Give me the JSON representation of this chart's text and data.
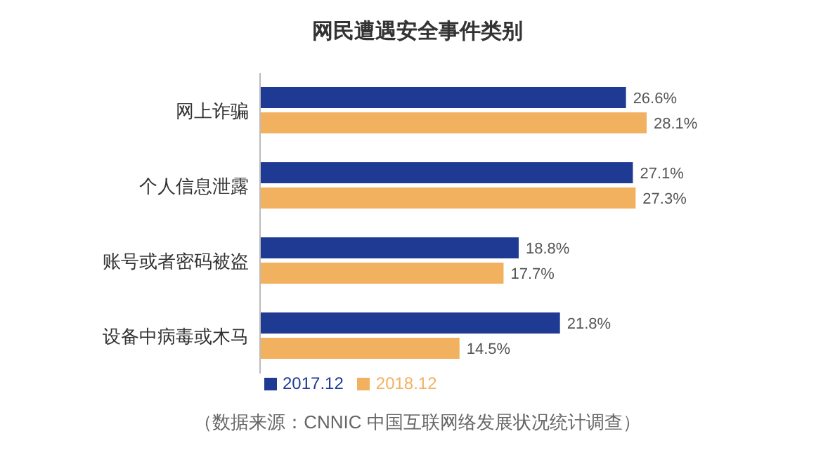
{
  "chart_data": {
    "type": "bar",
    "orientation": "horizontal",
    "title": "网民遭遇安全事件类别",
    "categories": [
      "网上诈骗",
      "个人信息泄露",
      "账号或者密码被盗",
      "设备中病毒或木马"
    ],
    "series": [
      {
        "name": "2017.12",
        "color": "#1f3a93",
        "values": [
          26.6,
          27.1,
          18.8,
          21.8
        ],
        "value_labels": [
          "26.6%",
          "27.1%",
          "18.8%",
          "21.8%"
        ]
      },
      {
        "name": "2018.12",
        "color": "#f2b15f",
        "values": [
          28.1,
          27.3,
          17.7,
          14.5
        ],
        "value_labels": [
          "28.1%",
          "27.3%",
          "17.7%",
          "14.5%"
        ]
      }
    ],
    "legend": "bottom",
    "grid": false,
    "annotations": [
      "（数据来源：CNNIC 中国互联网络发展状况统计调查）"
    ]
  }
}
